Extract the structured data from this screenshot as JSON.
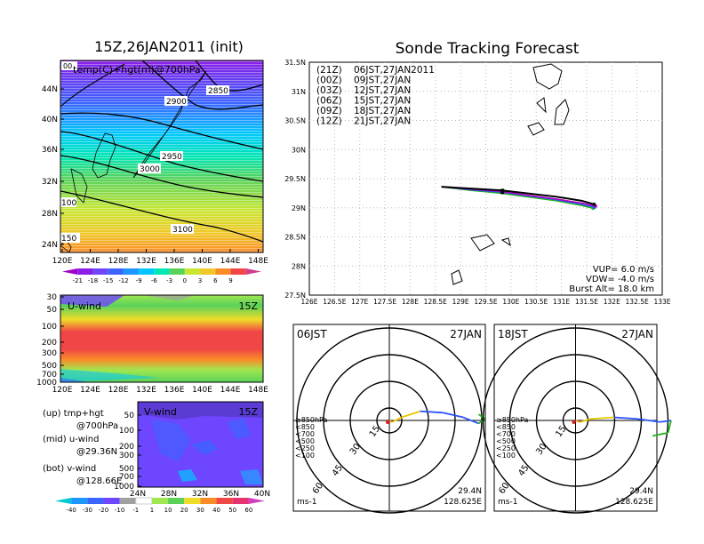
{
  "left_title": "15Z,26JAN2011 (init)",
  "main_title": "Sonde Tracking Forecast",
  "top_map": {
    "label_tl": "00",
    "label": "temp(C)+hgt(m)@700hPa",
    "yticks": [
      "44N",
      "40N",
      "36N",
      "32N",
      "28N",
      "24N"
    ],
    "xticks": [
      "120E",
      "124E",
      "128E",
      "132E",
      "136E",
      "140E",
      "144E",
      "148E"
    ],
    "contours": [
      "2850",
      "2900",
      "2950",
      "3000",
      "3100"
    ],
    "temp_labels": [
      "100",
      "150"
    ]
  },
  "temp_colorbar": {
    "labels": [
      "-21",
      "-18",
      "-15",
      "-12",
      "-9",
      "-6",
      "-3",
      "0",
      "3",
      "6",
      "9"
    ],
    "colors": [
      "#a000c8",
      "#8a1ee6",
      "#6e46ff",
      "#3c64ff",
      "#1e96ff",
      "#00c8ff",
      "#00e6b4",
      "#5ad25a",
      "#c8e632",
      "#f0c828",
      "#fa8c28",
      "#f04646",
      "#d23c8c"
    ]
  },
  "u_wind": {
    "title": "U-wind",
    "time": "15Z",
    "yticks": [
      "30",
      "50",
      "100",
      "200",
      "300",
      "500",
      "700",
      "1000"
    ],
    "xticks": [
      "120E",
      "124E",
      "128E",
      "132E",
      "136E",
      "140E",
      "144E",
      "148E"
    ]
  },
  "v_wind": {
    "title": "V-wind",
    "time": "15Z",
    "yticks": [
      "50",
      "100",
      "200",
      "300",
      "500",
      "700",
      "1000"
    ],
    "xticks": [
      "24N",
      "28N",
      "32N",
      "36N",
      "40N"
    ]
  },
  "legend_notes": [
    {
      "k": "(up)",
      "v": "tmp+hgt",
      "v2": "@700hPa"
    },
    {
      "k": "(mid)",
      "v": "u-wind",
      "v2": "@29.36N"
    },
    {
      "k": "(bot)",
      "v": "v-wind",
      "v2": "@128.66E"
    }
  ],
  "wind_colorbar": {
    "labels": [
      "-40",
      "-30",
      "-20",
      "-10",
      "-1",
      "1",
      "10",
      "20",
      "30",
      "40",
      "50",
      "60"
    ],
    "colors": [
      "#00c8d2",
      "#1e96ff",
      "#3c64ff",
      "#6e46ff",
      "#a0a0a0",
      "#ffffff",
      "#a0e650",
      "#5ad25a",
      "#f0dc28",
      "#fa8c28",
      "#f04646",
      "#e6326e",
      "#d23cbe"
    ]
  },
  "track_map": {
    "yticks": [
      "31.5N",
      "31N",
      "30.5N",
      "30N",
      "29.5N",
      "29N",
      "28.5N",
      "28N",
      "27.5N"
    ],
    "xticks": [
      "126E",
      "126.5E",
      "127E",
      "127.5E",
      "128E",
      "128.5E",
      "129E",
      "129.5E",
      "130E",
      "130.5E",
      "131E",
      "131.5E",
      "132E",
      "132.5E",
      "133E"
    ],
    "legend": [
      {
        "tag": "(21Z)",
        "time": "06JST,27JAN2011",
        "color": "#000000"
      },
      {
        "tag": "(00Z)",
        "time": "09JST,27JAN",
        "color": "#b400c8"
      },
      {
        "tag": "(03Z)",
        "time": "12JST,27JAN",
        "color": "#2850ff"
      },
      {
        "tag": "(06Z)",
        "time": "15JST,27JAN",
        "color": "#1eb41e"
      },
      {
        "tag": "(09Z)",
        "time": "18JST,27JAN",
        "color": "#e6c800"
      },
      {
        "tag": "(12Z)",
        "time": "21JST,27JAN",
        "color": "#f08c28"
      }
    ],
    "params": [
      "VUP= 6.0 m/s",
      "VDW= -4.0 m/s",
      "Burst Alt= 18.0 km"
    ]
  },
  "chart_data": [
    {
      "type": "line",
      "title": "Sonde Tracking Forecast",
      "xlabel": "",
      "ylabel": "",
      "xlim": [
        126,
        133
      ],
      "ylim": [
        27.5,
        31.5
      ],
      "series": [
        {
          "name": "06JST,27JAN2011",
          "x": [
            128.62,
            129.2,
            129.8,
            130.3,
            130.9,
            131.4,
            131.65
          ],
          "y": [
            29.36,
            29.33,
            29.3,
            29.25,
            29.19,
            29.12,
            29.06
          ]
        },
        {
          "name": "09JST,27JAN",
          "x": [
            128.62,
            129.2,
            129.8,
            130.3,
            130.9,
            131.4,
            131.68
          ],
          "y": [
            29.36,
            29.32,
            29.28,
            29.22,
            29.15,
            29.08,
            29.03
          ]
        },
        {
          "name": "12JST,27JAN",
          "x": [
            128.62,
            129.2,
            129.8,
            130.3,
            130.9,
            131.4,
            131.66
          ],
          "y": [
            29.36,
            29.31,
            29.27,
            29.21,
            29.14,
            29.06,
            29.01
          ]
        },
        {
          "name": "15JST,27JAN",
          "x": [
            128.62,
            129.2,
            129.8,
            130.3,
            130.9,
            131.4,
            131.63
          ],
          "y": [
            29.36,
            29.3,
            29.25,
            29.19,
            29.12,
            29.04,
            28.99
          ]
        },
        {
          "name": "18JST,27JAN",
          "x": [
            128.62,
            129.2,
            129.8,
            130.3,
            130.9,
            131.4,
            131.6
          ],
          "y": [
            29.36,
            29.3,
            29.26,
            29.2,
            29.13,
            29.06,
            29.01
          ]
        },
        {
          "name": "21JST,27JAN",
          "x": [
            128.62,
            129.2,
            129.8,
            130.3,
            130.9,
            131.4,
            131.64
          ],
          "y": [
            29.36,
            29.31,
            29.27,
            29.21,
            29.15,
            29.08,
            29.03
          ]
        }
      ]
    },
    {
      "type": "polar",
      "title": "06JST",
      "date": "27JAN",
      "ring_labels": [
        "15",
        "30",
        "45",
        "60"
      ],
      "level_labels": [
        "≥850hPa",
        "<850",
        "<700",
        "<500",
        "<250",
        "<100"
      ],
      "level_colors": [
        "#e61e1e",
        "#f08c28",
        "#e6c800",
        "#1eb41e",
        "#2850ff",
        "#2850ff"
      ],
      "unit": "ms-1",
      "location": [
        "29.4N",
        "128.625E"
      ],
      "hodograph_u": [
        0,
        2,
        8,
        20,
        35,
        48,
        58,
        62,
        58
      ],
      "hodograph_v": [
        0,
        -1,
        2,
        6,
        5,
        2,
        -2,
        1,
        4
      ]
    },
    {
      "type": "polar",
      "title": "18JST",
      "date": "27JAN",
      "ring_labels": [
        "15",
        "30",
        "45",
        "60"
      ],
      "level_labels": [
        "≥850hPa",
        "<850",
        "<700",
        "<500",
        "<250",
        "<100"
      ],
      "level_colors": [
        "#e61e1e",
        "#f08c28",
        "#e6c800",
        "#1eb41e",
        "#2850ff",
        "#2850ff"
      ],
      "unit": "ms-1",
      "location": [
        "29.4N",
        "128.625E"
      ],
      "hodograph_u": [
        0,
        3,
        10,
        25,
        40,
        55,
        62,
        60,
        50
      ],
      "hodograph_v": [
        0,
        -1,
        1,
        2,
        1,
        -1,
        0,
        -8,
        -10
      ]
    }
  ]
}
